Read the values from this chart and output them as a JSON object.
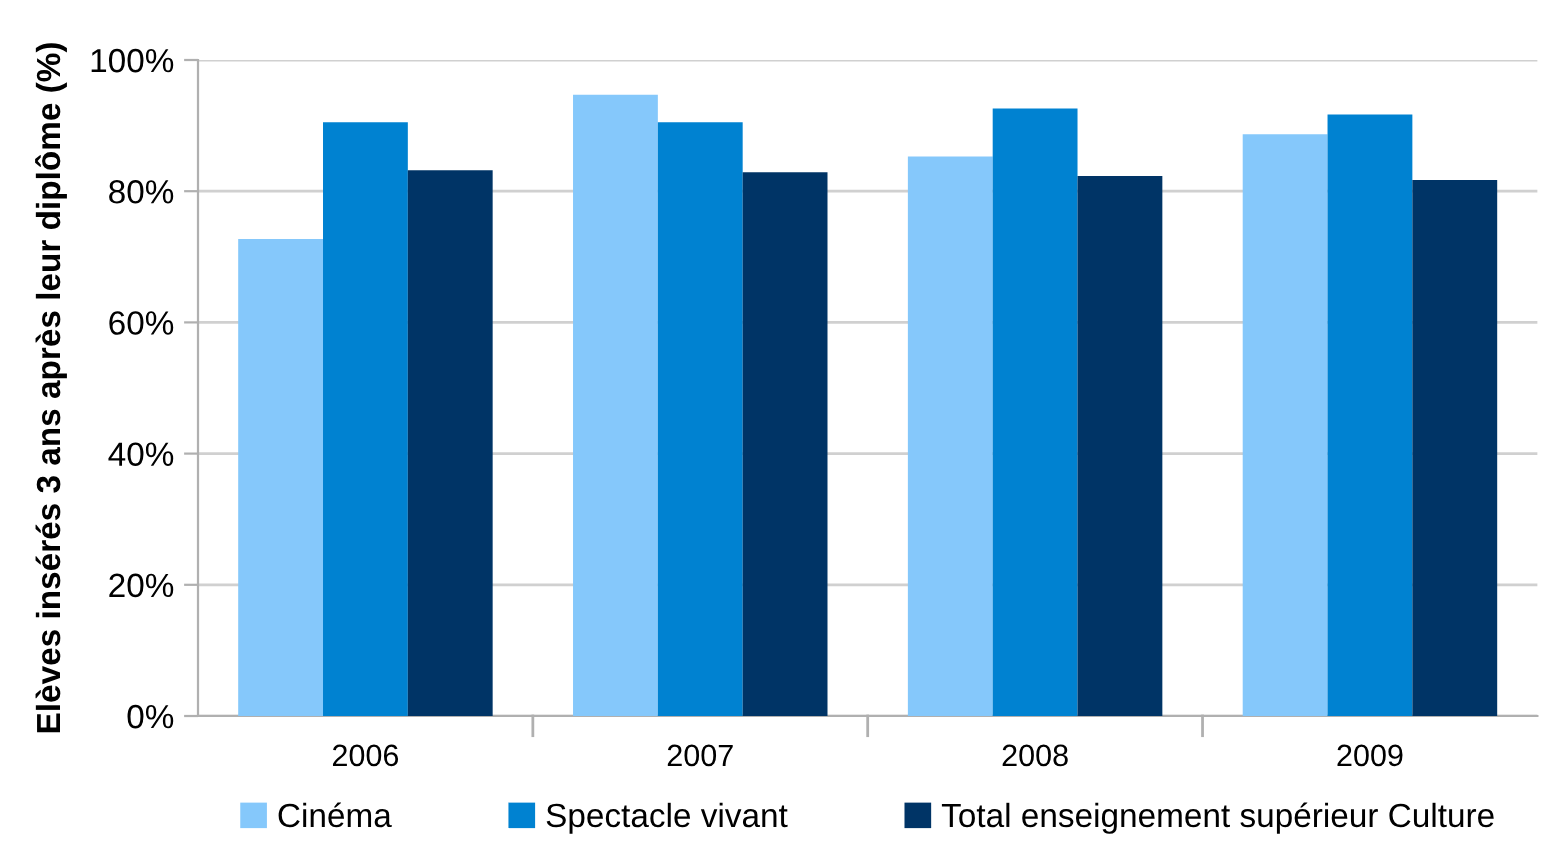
{
  "chart_data": {
    "type": "bar",
    "ylabel": "Elèves insérés 3 ans après leur diplôme (%)",
    "categories": [
      "2006",
      "2007",
      "2008",
      "2009"
    ],
    "series": [
      {
        "name": "Cinéma",
        "color": "#85c8fb",
        "values": [
          72.7,
          94.7,
          85.3,
          88.7
        ]
      },
      {
        "name": "Spectacle vivant",
        "color": "#0082d1",
        "values": [
          90.5,
          90.5,
          92.6,
          91.7
        ]
      },
      {
        "name": "Total enseignement supérieur Culture",
        "color": "#003466",
        "values": [
          83.2,
          82.9,
          82.3,
          81.7
        ]
      }
    ],
    "ylim": [
      0,
      100
    ],
    "yticks": [
      {
        "value": 0,
        "label": "0%"
      },
      {
        "value": 20,
        "label": "20%"
      },
      {
        "value": 40,
        "label": "40%"
      },
      {
        "value": 60,
        "label": "60%"
      },
      {
        "value": 80,
        "label": "80%"
      },
      {
        "value": 100,
        "label": "100%"
      }
    ],
    "grid": "y",
    "legend": "bottom"
  }
}
